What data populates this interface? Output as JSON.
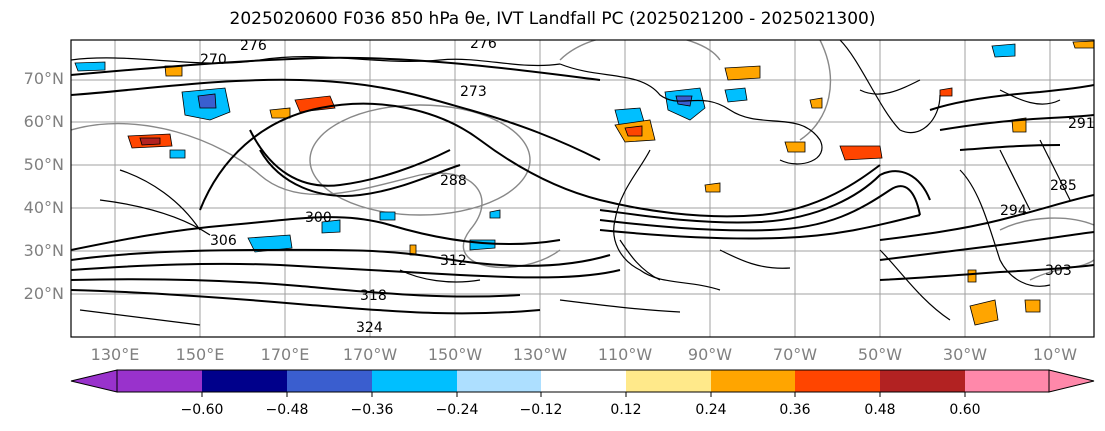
{
  "title": "2025020600 F036 850 hPa θe, IVT Landfall PC (2025021200 - 2025021300)",
  "map": {
    "lat_labels": [
      "70°N",
      "60°N",
      "50°N",
      "40°N",
      "30°N",
      "20°N"
    ],
    "lon_labels": [
      "130°E",
      "150°E",
      "170°E",
      "170°W",
      "150°W",
      "130°W",
      "110°W",
      "90°W",
      "70°W",
      "50°W",
      "30°W",
      "10°W"
    ],
    "contour_labels": [
      "276",
      "270",
      "276",
      "273",
      "288",
      "300",
      "306",
      "312",
      "318",
      "324",
      "291",
      "285",
      "294",
      "303"
    ],
    "coastline_color": "#000000",
    "gridline_color": "#808080"
  },
  "colorbar": {
    "tick_labels": [
      "−0.60",
      "−0.48",
      "−0.36",
      "−0.24",
      "−0.12",
      "0.12",
      "0.24",
      "0.36",
      "0.48",
      "0.60"
    ],
    "colors": [
      "#9932CC",
      "#00008B",
      "#3A5ECF",
      "#00BFFF",
      "#ADDFFF",
      "#FFFFFF",
      "#FFE98A",
      "#FFA500",
      "#FF4500",
      "#B22222",
      "#FF88AA"
    ]
  }
}
